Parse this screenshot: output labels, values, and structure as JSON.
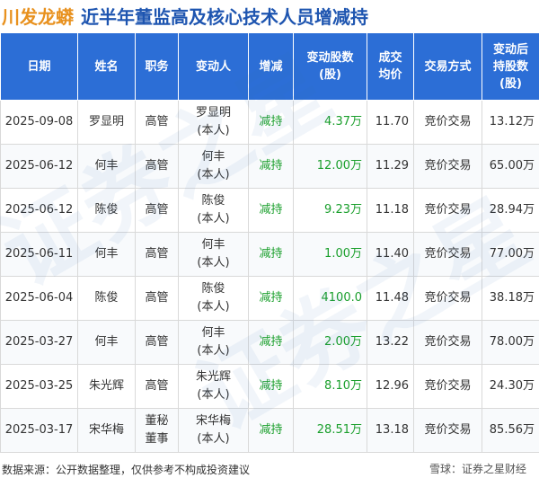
{
  "header": {
    "company": "川发龙蟒",
    "headline": "近半年董监高及核心技术人员增减持"
  },
  "table": {
    "columns": [
      {
        "lines": [
          "日期"
        ]
      },
      {
        "lines": [
          "姓名"
        ]
      },
      {
        "lines": [
          "职务"
        ]
      },
      {
        "lines": [
          "变动人"
        ]
      },
      {
        "lines": [
          "增减"
        ]
      },
      {
        "lines": [
          "变动股数",
          "(股)"
        ]
      },
      {
        "lines": [
          "成交",
          "均价"
        ]
      },
      {
        "lines": [
          "交易方式"
        ]
      },
      {
        "lines": [
          "变动后",
          "持股数",
          "(股)"
        ]
      }
    ],
    "rows": [
      {
        "date": "2025-09-08",
        "name": "罗显明",
        "position": [
          "高管"
        ],
        "changer": [
          "罗显明",
          "(本人)"
        ],
        "direction": "减持",
        "shares": "4.37万",
        "price": "11.70",
        "method": "竞价交易",
        "holding": "13.12万"
      },
      {
        "date": "2025-06-12",
        "name": "何丰",
        "position": [
          "高管"
        ],
        "changer": [
          "何丰",
          "(本人)"
        ],
        "direction": "减持",
        "shares": "12.00万",
        "price": "11.29",
        "method": "竞价交易",
        "holding": "65.00万"
      },
      {
        "date": "2025-06-12",
        "name": "陈俊",
        "position": [
          "高管"
        ],
        "changer": [
          "陈俊",
          "(本人)"
        ],
        "direction": "减持",
        "shares": "9.23万",
        "price": "11.18",
        "method": "竞价交易",
        "holding": "28.94万"
      },
      {
        "date": "2025-06-11",
        "name": "何丰",
        "position": [
          "高管"
        ],
        "changer": [
          "何丰",
          "(本人)"
        ],
        "direction": "减持",
        "shares": "1.00万",
        "price": "11.40",
        "method": "竞价交易",
        "holding": "77.00万"
      },
      {
        "date": "2025-06-04",
        "name": "陈俊",
        "position": [
          "高管"
        ],
        "changer": [
          "陈俊",
          "(本人)"
        ],
        "direction": "减持",
        "shares": "4100.0",
        "price": "11.48",
        "method": "竞价交易",
        "holding": "38.18万"
      },
      {
        "date": "2025-03-27",
        "name": "何丰",
        "position": [
          "高管"
        ],
        "changer": [
          "何丰",
          "(本人)"
        ],
        "direction": "减持",
        "shares": "2.00万",
        "price": "13.22",
        "method": "竞价交易",
        "holding": "78.00万"
      },
      {
        "date": "2025-03-25",
        "name": "朱光辉",
        "position": [
          "高管"
        ],
        "changer": [
          "朱光辉",
          "(本人)"
        ],
        "direction": "减持",
        "shares": "8.10万",
        "price": "12.96",
        "method": "竞价交易",
        "holding": "24.30万"
      },
      {
        "date": "2025-03-17",
        "name": "宋华梅",
        "position": [
          "董秘",
          "董事"
        ],
        "changer": [
          "宋华梅",
          "(本人)"
        ],
        "direction": "减持",
        "shares": "28.51万",
        "price": "13.18",
        "method": "竞价交易",
        "holding": "85.56万"
      }
    ]
  },
  "watermark": {
    "text": "证券之星"
  },
  "footer": {
    "source": "数据来源：公开数据整理，仅供参考不构成投资建议",
    "brand": "雪球：证券之星财经"
  },
  "colors": {
    "header_bg": "#2c6ed6",
    "company": "#e8911e",
    "headline": "#1e55b0",
    "reduce": "#1a9f2c"
  }
}
